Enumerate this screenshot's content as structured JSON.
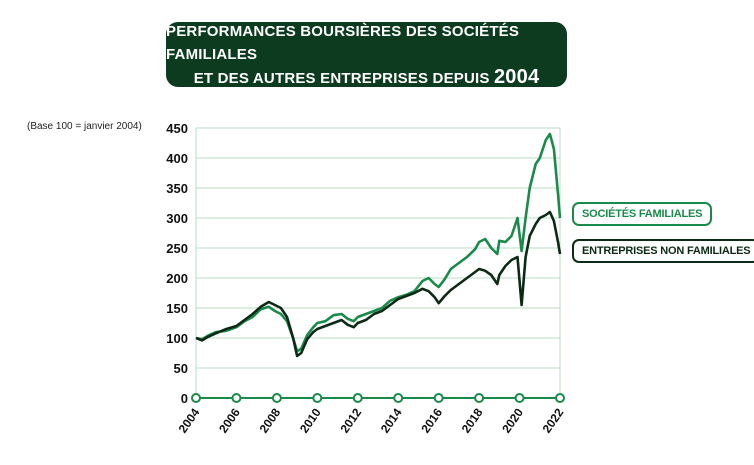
{
  "title": {
    "line1": "Performances boursières des sociétés familiales",
    "line2_text": "et des autres entreprises depuis",
    "line2_year": "2004"
  },
  "base_note": "(Base 100 = janvier 2004)",
  "colors": {
    "familiales": "#1a8a4a",
    "non_familiales": "#0d2a16",
    "grid": "#b9dcc4",
    "axis": "#1a8a4a"
  },
  "chart_data": {
    "type": "line",
    "title": "Performances boursières des sociétés familiales et des autres entreprises depuis 2004",
    "ylabel": "(Base 100 = janvier 2004)",
    "xlim": [
      2004,
      2022
    ],
    "ylim": [
      0,
      450
    ],
    "yticks": [
      0,
      50,
      100,
      150,
      200,
      250,
      300,
      350,
      400,
      450
    ],
    "xticks": [
      2004,
      2006,
      2008,
      2010,
      2012,
      2014,
      2016,
      2018,
      2020,
      2022
    ],
    "grid": true,
    "series": [
      {
        "name": "Sociétés familiales",
        "x": [
          2004.0,
          2004.3,
          2004.6,
          2005.0,
          2005.5,
          2006.0,
          2006.4,
          2006.8,
          2007.2,
          2007.6,
          2007.9,
          2008.2,
          2008.5,
          2008.8,
          2009.0,
          2009.2,
          2009.5,
          2009.8,
          2010.0,
          2010.4,
          2010.8,
          2011.2,
          2011.5,
          2011.8,
          2012.0,
          2012.4,
          2012.8,
          2013.2,
          2013.6,
          2014.0,
          2014.4,
          2014.8,
          2015.2,
          2015.5,
          2015.8,
          2016.0,
          2016.3,
          2016.6,
          2017.0,
          2017.4,
          2017.8,
          2018.0,
          2018.3,
          2018.6,
          2018.9,
          2019.0,
          2019.3,
          2019.6,
          2019.9,
          2020.1,
          2020.3,
          2020.5,
          2020.8,
          2021.0,
          2021.3,
          2021.5,
          2021.7,
          2021.9,
          2022.0
        ],
        "values": [
          100,
          98,
          104,
          110,
          112,
          118,
          128,
          135,
          148,
          152,
          145,
          140,
          128,
          100,
          78,
          82,
          105,
          118,
          125,
          128,
          138,
          140,
          132,
          128,
          135,
          140,
          145,
          150,
          162,
          168,
          172,
          178,
          195,
          200,
          190,
          185,
          198,
          215,
          225,
          235,
          248,
          260,
          265,
          250,
          240,
          262,
          260,
          270,
          300,
          245,
          300,
          350,
          390,
          400,
          430,
          440,
          415,
          340,
          300
        ]
      },
      {
        "name": "Entreprises non familiales",
        "x": [
          2004.0,
          2004.3,
          2004.6,
          2005.0,
          2005.5,
          2006.0,
          2006.4,
          2006.8,
          2007.2,
          2007.6,
          2007.9,
          2008.2,
          2008.5,
          2008.8,
          2009.0,
          2009.2,
          2009.5,
          2009.8,
          2010.0,
          2010.4,
          2010.8,
          2011.2,
          2011.5,
          2011.8,
          2012.0,
          2012.4,
          2012.8,
          2013.2,
          2013.6,
          2014.0,
          2014.4,
          2014.8,
          2015.2,
          2015.5,
          2015.8,
          2016.0,
          2016.3,
          2016.6,
          2017.0,
          2017.4,
          2017.8,
          2018.0,
          2018.3,
          2018.6,
          2018.9,
          2019.0,
          2019.3,
          2019.6,
          2019.9,
          2020.1,
          2020.3,
          2020.5,
          2020.8,
          2021.0,
          2021.3,
          2021.5,
          2021.7,
          2021.9,
          2022.0
        ],
        "values": [
          100,
          96,
          102,
          108,
          115,
          120,
          130,
          140,
          152,
          160,
          155,
          150,
          135,
          100,
          70,
          75,
          98,
          110,
          115,
          120,
          125,
          130,
          122,
          118,
          125,
          130,
          140,
          145,
          155,
          165,
          170,
          175,
          182,
          178,
          168,
          158,
          170,
          180,
          190,
          200,
          210,
          215,
          212,
          205,
          190,
          205,
          220,
          230,
          235,
          155,
          235,
          270,
          290,
          300,
          305,
          310,
          295,
          260,
          240
        ]
      }
    ],
    "legend": [
      "Sociétés familiales",
      "Entreprises non familiales"
    ],
    "legend_position": "right"
  }
}
